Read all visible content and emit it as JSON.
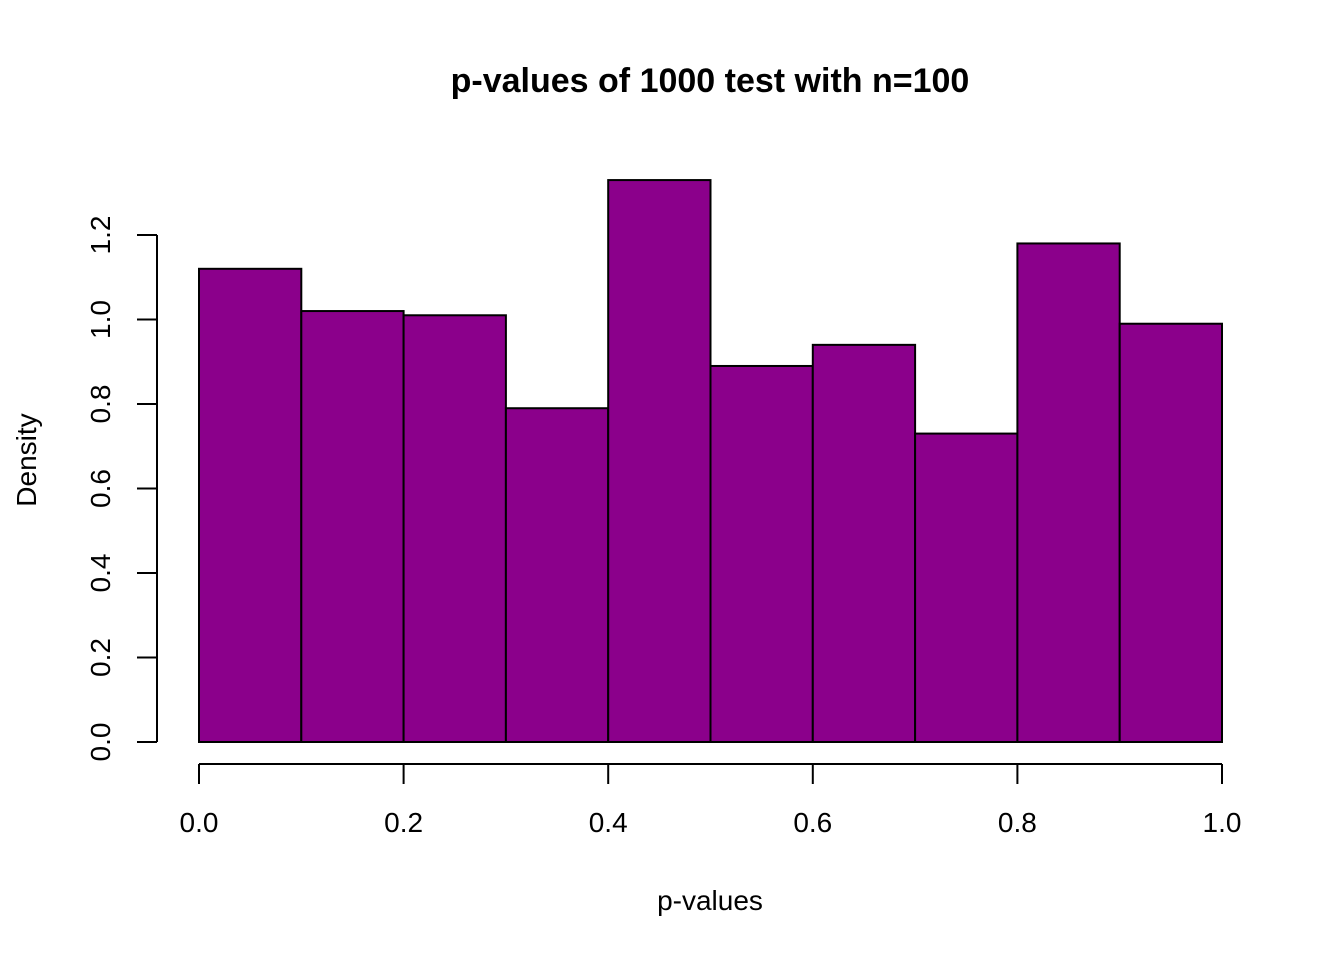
{
  "chart_data": {
    "type": "bar",
    "title": "p-values of 1000 test with n=100",
    "xlabel": "p-values",
    "ylabel": "Density",
    "bins": [
      {
        "from": 0.0,
        "to": 0.1,
        "value": 1.12
      },
      {
        "from": 0.1,
        "to": 0.2,
        "value": 1.02
      },
      {
        "from": 0.2,
        "to": 0.3,
        "value": 1.01
      },
      {
        "from": 0.3,
        "to": 0.4,
        "value": 0.79
      },
      {
        "from": 0.4,
        "to": 0.5,
        "value": 1.33
      },
      {
        "from": 0.5,
        "to": 0.6,
        "value": 0.89
      },
      {
        "from": 0.6,
        "to": 0.7,
        "value": 0.94
      },
      {
        "from": 0.7,
        "to": 0.8,
        "value": 0.73
      },
      {
        "from": 0.8,
        "to": 0.9,
        "value": 1.18
      },
      {
        "from": 0.9,
        "to": 1.0,
        "value": 0.99
      }
    ],
    "xlim": [
      0,
      1
    ],
    "ylim": [
      0,
      1.33
    ],
    "x_ticks": [
      "0.0",
      "0.2",
      "0.4",
      "0.6",
      "0.8",
      "1.0"
    ],
    "y_ticks": [
      "0.0",
      "0.2",
      "0.4",
      "0.6",
      "0.8",
      "1.0",
      "1.2"
    ],
    "grid": false,
    "bar_color": "#8B008B",
    "edge_color": "#000000"
  }
}
